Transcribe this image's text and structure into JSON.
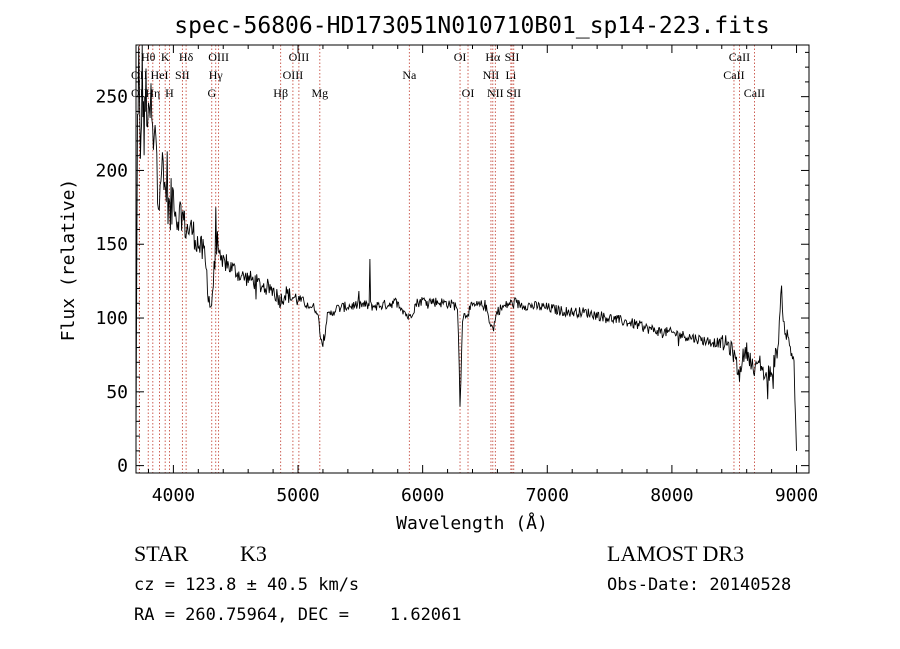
{
  "chart_data": {
    "type": "line",
    "title": "spec-56806-HD173051N010710B01_sp14-223.fits",
    "xlabel": "Wavelength (Å)",
    "ylabel": "Flux (relative)",
    "xlim": [
      3700,
      9100
    ],
    "ylim": [
      -5,
      285
    ],
    "xticks": [
      4000,
      5000,
      6000,
      7000,
      8000,
      9000
    ],
    "yticks": [
      0,
      50,
      100,
      150,
      200,
      250
    ],
    "line_color": "#000000",
    "marker_color": "#c0392b",
    "spectrum_anchors": [
      [
        3700,
        10
      ],
      [
        3712,
        230
      ],
      [
        3722,
        275
      ],
      [
        3735,
        195
      ],
      [
        3750,
        270
      ],
      [
        3765,
        220
      ],
      [
        3780,
        255
      ],
      [
        3800,
        225
      ],
      [
        3820,
        245
      ],
      [
        3840,
        210
      ],
      [
        3860,
        228
      ],
      [
        3880,
        190
      ],
      [
        3900,
        205
      ],
      [
        3930,
        185
      ],
      [
        3950,
        195
      ],
      [
        3970,
        165
      ],
      [
        4000,
        185
      ],
      [
        4030,
        165
      ],
      [
        4060,
        175
      ],
      [
        4100,
        160
      ],
      [
        4150,
        160
      ],
      [
        4200,
        150
      ],
      [
        4250,
        142
      ],
      [
        4280,
        120
      ],
      [
        4300,
        105
      ],
      [
        4320,
        125
      ],
      [
        4340,
        140
      ],
      [
        4360,
        155
      ],
      [
        4380,
        130
      ],
      [
        4400,
        138
      ],
      [
        4450,
        135
      ],
      [
        4500,
        132
      ],
      [
        4550,
        128
      ],
      [
        4600,
        127
      ],
      [
        4650,
        125
      ],
      [
        4700,
        122
      ],
      [
        4750,
        121
      ],
      [
        4800,
        119
      ],
      [
        4860,
        112
      ],
      [
        4900,
        117
      ],
      [
        4950,
        114
      ],
      [
        5000,
        113
      ],
      [
        5100,
        108
      ],
      [
        5150,
        106
      ],
      [
        5175,
        93
      ],
      [
        5200,
        80
      ],
      [
        5230,
        100
      ],
      [
        5300,
        106
      ],
      [
        5400,
        108
      ],
      [
        5500,
        109
      ],
      [
        5600,
        108
      ],
      [
        5700,
        109
      ],
      [
        5800,
        111
      ],
      [
        5890,
        100
      ],
      [
        5950,
        110
      ],
      [
        6000,
        112
      ],
      [
        6100,
        111
      ],
      [
        6200,
        110
      ],
      [
        6280,
        108
      ],
      [
        6300,
        45
      ],
      [
        6320,
        100
      ],
      [
        6400,
        108
      ],
      [
        6500,
        109
      ],
      [
        6563,
        92
      ],
      [
        6600,
        105
      ],
      [
        6700,
        110
      ],
      [
        6800,
        109
      ],
      [
        6900,
        108
      ],
      [
        7000,
        107
      ],
      [
        7100,
        105
      ],
      [
        7200,
        104
      ],
      [
        7300,
        104
      ],
      [
        7400,
        102
      ],
      [
        7500,
        100
      ],
      [
        7600,
        98
      ],
      [
        7700,
        96
      ],
      [
        7800,
        93
      ],
      [
        7900,
        91
      ],
      [
        8000,
        90
      ],
      [
        8100,
        88
      ],
      [
        8200,
        86
      ],
      [
        8300,
        84
      ],
      [
        8400,
        83
      ],
      [
        8450,
        82
      ],
      [
        8500,
        75
      ],
      [
        8542,
        60
      ],
      [
        8560,
        72
      ],
      [
        8600,
        78
      ],
      [
        8640,
        70
      ],
      [
        8662,
        62
      ],
      [
        8700,
        72
      ],
      [
        8750,
        60
      ],
      [
        8800,
        65
      ],
      [
        8850,
        80
      ],
      [
        8880,
        120
      ],
      [
        8900,
        95
      ],
      [
        8950,
        80
      ],
      [
        8980,
        70
      ],
      [
        9000,
        10
      ]
    ],
    "line_markers": [
      {
        "w": 3798,
        "label": "Hθ",
        "row": 0
      },
      {
        "w": 3727,
        "label": "OII",
        "row": 1
      },
      {
        "w": 3727,
        "label": "OII",
        "row": 2
      },
      {
        "w": 3835,
        "label": "Hη",
        "row": 2
      },
      {
        "w": 3889,
        "label": "HeI",
        "row": 1
      },
      {
        "w": 3934,
        "label": "K",
        "row": 0
      },
      {
        "w": 3968,
        "label": "H",
        "row": 2
      },
      {
        "w": 4072,
        "label": "SII",
        "row": 1
      },
      {
        "w": 4102,
        "label": "Hδ",
        "row": 0
      },
      {
        "w": 4308,
        "label": "G",
        "row": 2
      },
      {
        "w": 4340,
        "label": "Hγ",
        "row": 1
      },
      {
        "w": 4363,
        "label": "OIII",
        "row": 0
      },
      {
        "w": 4861,
        "label": "Hβ",
        "row": 2
      },
      {
        "w": 4959,
        "label": "OIII",
        "row": 1
      },
      {
        "w": 5007,
        "label": "OIII",
        "row": 0
      },
      {
        "w": 5175,
        "label": "Mg",
        "row": 2
      },
      {
        "w": 5893,
        "label": "Na",
        "row": 1
      },
      {
        "w": 6300,
        "label": "OI",
        "row": 0
      },
      {
        "w": 6364,
        "label": "OI",
        "row": 2
      },
      {
        "w": 6548,
        "label": "NII",
        "row": 1
      },
      {
        "w": 6563,
        "label": "Hα",
        "row": 0
      },
      {
        "w": 6583,
        "label": "NII",
        "row": 2
      },
      {
        "w": 6708,
        "label": "Li",
        "row": 1
      },
      {
        "w": 6717,
        "label": "SII",
        "row": 0
      },
      {
        "w": 6731,
        "label": "SII",
        "row": 2
      },
      {
        "w": 8498,
        "label": "CaII",
        "row": 1
      },
      {
        "w": 8542,
        "label": "CaII",
        "row": 0
      },
      {
        "w": 8662,
        "label": "CaII",
        "row": 2
      }
    ]
  },
  "info": {
    "object_class": "STAR",
    "subclass": "K3",
    "survey": "LAMOST DR3",
    "redshift": "cz = 123.8 ± 40.5 km/s",
    "obs_date": "Obs-Date: 20140528",
    "coords": "RA = 260.75964, DEC =    1.62061"
  }
}
